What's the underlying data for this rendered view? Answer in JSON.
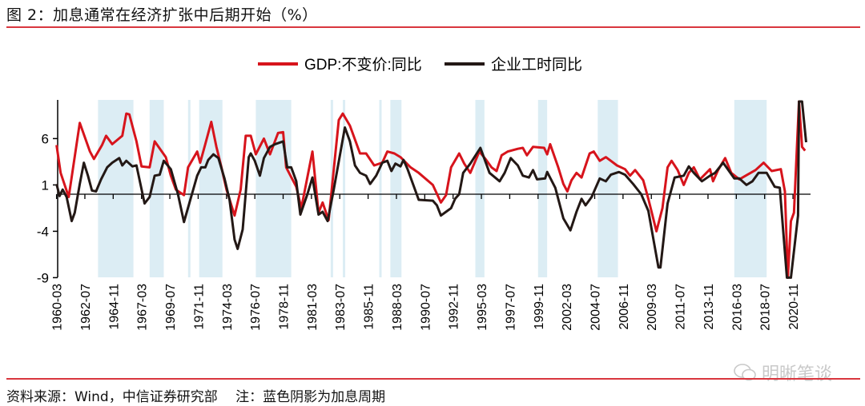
{
  "title": "图 2：加息通常在经济扩张中后期开始（%）",
  "source": "资料来源：Wind，中信证券研究部　 注：蓝色阴影为加息周期",
  "watermark": "明晰笔谈",
  "colors": {
    "gdp": "#d7141c",
    "hours": "#231815",
    "shade": "#dcedf4",
    "rule": "#d9363e"
  },
  "chart_data": {
    "type": "line",
    "title": "",
    "xlabel": "",
    "ylabel": "",
    "ylim": [
      -9,
      10
    ],
    "yticks": [
      -9,
      -4,
      1,
      6
    ],
    "xticks": [
      "1960-03",
      "1962-07",
      "1964-11",
      "1967-03",
      "1969-07",
      "1971-11",
      "1974-03",
      "1976-07",
      "1978-11",
      "1981-03",
      "1983-07",
      "1985-11",
      "1988-03",
      "1990-07",
      "1992-11",
      "1995-03",
      "1997-07",
      "1999-11",
      "2002-03",
      "2004-07",
      "2006-11",
      "2009-03",
      "2011-07",
      "2013-11",
      "2016-03",
      "2018-07",
      "2020-11"
    ],
    "legend_position": "top-center",
    "grid": false,
    "shaded_periods": [
      [
        "1963-08",
        "1966-07"
      ],
      [
        "1967-11",
        "1969-01"
      ],
      [
        "1971-01",
        "1971-03"
      ],
      [
        "1971-12",
        "1973-11"
      ],
      [
        "1976-08",
        "1979-07"
      ],
      [
        "1982-10",
        "1982-12"
      ],
      [
        "1983-10",
        "1983-12"
      ],
      [
        "1986-10",
        "1986-12"
      ],
      [
        "1987-09",
        "1988-08"
      ],
      [
        "1994-09",
        "1995-06"
      ],
      [
        "1999-11",
        "2000-08"
      ],
      [
        "2004-10",
        "2006-06"
      ],
      [
        "2016-01",
        "2018-09"
      ]
    ],
    "series": [
      {
        "name": "GDP:不变价:同比",
        "color": "#d7141c",
        "points": [
          [
            "1960-03",
            5.3
          ],
          [
            "1960-07",
            2.3
          ],
          [
            "1961-03",
            -0.3
          ],
          [
            "1962-02",
            7.7
          ],
          [
            "1962-12",
            4.6
          ],
          [
            "1963-04",
            3.8
          ],
          [
            "1963-12",
            5.3
          ],
          [
            "1964-04",
            6.3
          ],
          [
            "1964-10",
            5.4
          ],
          [
            "1965-08",
            6.3
          ],
          [
            "1965-12",
            8.7
          ],
          [
            "1966-03",
            8.6
          ],
          [
            "1966-10",
            5.7
          ],
          [
            "1967-03",
            3.0
          ],
          [
            "1967-11",
            2.9
          ],
          [
            "1968-04",
            5.7
          ],
          [
            "1969-03",
            4.0
          ],
          [
            "1969-08",
            2.0
          ],
          [
            "1970-01",
            0.5
          ],
          [
            "1970-09",
            -0.1
          ],
          [
            "1971-01",
            2.9
          ],
          [
            "1971-10",
            4.6
          ],
          [
            "1972-01",
            3.4
          ],
          [
            "1972-06",
            5.4
          ],
          [
            "1972-12",
            7.8
          ],
          [
            "1973-05",
            5.1
          ],
          [
            "1973-10",
            2.9
          ],
          [
            "1974-03",
            0.5
          ],
          [
            "1974-11",
            -2.3
          ],
          [
            "1975-05",
            0.5
          ],
          [
            "1975-10",
            6.3
          ],
          [
            "1976-03",
            6.3
          ],
          [
            "1976-08",
            4.3
          ],
          [
            "1977-04",
            6.0
          ],
          [
            "1977-10",
            4.3
          ],
          [
            "1978-06",
            6.6
          ],
          [
            "1978-11",
            6.7
          ],
          [
            "1979-02",
            2.9
          ],
          [
            "1979-12",
            0.8
          ],
          [
            "1980-05",
            -1.5
          ],
          [
            "1981-04",
            4.6
          ],
          [
            "1981-10",
            -2.0
          ],
          [
            "1982-02",
            -0.9
          ],
          [
            "1982-08",
            -2.8
          ],
          [
            "1983-06",
            8.0
          ],
          [
            "1983-10",
            8.7
          ],
          [
            "1984-05",
            7.4
          ],
          [
            "1985-03",
            4.4
          ],
          [
            "1985-09",
            4.4
          ],
          [
            "1986-05",
            3.1
          ],
          [
            "1987-01",
            3.4
          ],
          [
            "1987-06",
            4.6
          ],
          [
            "1988-01",
            4.4
          ],
          [
            "1988-07",
            4.0
          ],
          [
            "1989-05",
            2.9
          ],
          [
            "1990-01",
            2.3
          ],
          [
            "1991-03",
            1.0
          ],
          [
            "1991-11",
            -0.9
          ],
          [
            "1992-04",
            -0.1
          ],
          [
            "1992-09",
            2.9
          ],
          [
            "1993-05",
            4.4
          ],
          [
            "1993-10",
            3.3
          ],
          [
            "1994-04",
            2.3
          ],
          [
            "1995-01",
            4.6
          ],
          [
            "1995-07",
            3.8
          ],
          [
            "1996-01",
            2.9
          ],
          [
            "1996-06",
            2.5
          ],
          [
            "1996-11",
            4.2
          ],
          [
            "1997-05",
            4.6
          ],
          [
            "1998-03",
            4.9
          ],
          [
            "1998-08",
            5.0
          ],
          [
            "1998-12",
            4.2
          ],
          [
            "1999-06",
            5.1
          ],
          [
            "2000-05",
            5.0
          ],
          [
            "2000-08",
            4.3
          ],
          [
            "2000-11",
            5.4
          ],
          [
            "2001-07",
            2.9
          ],
          [
            "2001-12",
            1.1
          ],
          [
            "2002-04",
            0.3
          ],
          [
            "2002-08",
            1.5
          ],
          [
            "2003-01",
            2.3
          ],
          [
            "2003-06",
            1.8
          ],
          [
            "2004-02",
            4.4
          ],
          [
            "2004-06",
            4.6
          ],
          [
            "2004-12",
            3.6
          ],
          [
            "2005-06",
            4.0
          ],
          [
            "2006-05",
            3.1
          ],
          [
            "2007-01",
            2.7
          ],
          [
            "2007-06",
            2.0
          ],
          [
            "2007-11",
            2.6
          ],
          [
            "2008-07",
            1.5
          ],
          [
            "2008-12",
            -0.5
          ],
          [
            "2009-08",
            -4.0
          ],
          [
            "2010-02",
            -1.5
          ],
          [
            "2010-07",
            2.9
          ],
          [
            "2010-11",
            3.6
          ],
          [
            "2011-05",
            2.6
          ],
          [
            "2011-11",
            1.0
          ],
          [
            "2012-04",
            2.3
          ],
          [
            "2012-09",
            2.9
          ],
          [
            "2013-03",
            1.6
          ],
          [
            "2014-01",
            2.7
          ],
          [
            "2014-04",
            1.4
          ],
          [
            "2014-09",
            2.6
          ],
          [
            "2015-04",
            3.9
          ],
          [
            "2015-10",
            2.3
          ],
          [
            "2016-06",
            1.6
          ],
          [
            "2017-02",
            2.1
          ],
          [
            "2017-10",
            2.6
          ],
          [
            "2018-06",
            3.4
          ],
          [
            "2019-02",
            2.5
          ],
          [
            "2019-11",
            2.7
          ],
          [
            "2020-03",
            0.3
          ],
          [
            "2020-06",
            -9.0
          ],
          [
            "2020-09",
            -2.9
          ],
          [
            "2020-12",
            -2.0
          ],
          [
            "2021-05",
            10.0
          ],
          [
            "2021-08",
            5.1
          ],
          [
            "2021-11",
            4.7
          ]
        ]
      },
      {
        "name": "企业工时同比",
        "color": "#231815",
        "points": [
          [
            "1960-03",
            1.1
          ],
          [
            "1960-06",
            -0.2
          ],
          [
            "1960-09",
            0.5
          ],
          [
            "1961-01",
            -0.3
          ],
          [
            "1961-06",
            -2.9
          ],
          [
            "1961-09",
            -2.0
          ],
          [
            "1962-02",
            1.1
          ],
          [
            "1962-06",
            3.4
          ],
          [
            "1962-10",
            2.0
          ],
          [
            "1963-02",
            0.4
          ],
          [
            "1963-06",
            0.3
          ],
          [
            "1963-11",
            1.6
          ],
          [
            "1964-05",
            2.9
          ],
          [
            "1964-10",
            3.4
          ],
          [
            "1965-05",
            3.9
          ],
          [
            "1965-08",
            3.1
          ],
          [
            "1965-12",
            3.6
          ],
          [
            "1966-06",
            3.0
          ],
          [
            "1966-10",
            3.1
          ],
          [
            "1967-06",
            -1.0
          ],
          [
            "1967-11",
            -0.3
          ],
          [
            "1968-04",
            2.0
          ],
          [
            "1968-09",
            2.1
          ],
          [
            "1969-01",
            3.6
          ],
          [
            "1969-08",
            2.7
          ],
          [
            "1970-03",
            0.0
          ],
          [
            "1970-09",
            -3.0
          ],
          [
            "1971-04",
            -0.3
          ],
          [
            "1971-10",
            2.0
          ],
          [
            "1972-02",
            2.9
          ],
          [
            "1972-06",
            2.9
          ],
          [
            "1972-09",
            3.7
          ],
          [
            "1973-02",
            4.3
          ],
          [
            "1973-07",
            3.9
          ],
          [
            "1974-01",
            1.7
          ],
          [
            "1974-06",
            -0.6
          ],
          [
            "1974-11",
            -4.9
          ],
          [
            "1975-02",
            -5.9
          ],
          [
            "1975-07",
            -3.8
          ],
          [
            "1976-01",
            4.0
          ],
          [
            "1976-03",
            4.4
          ],
          [
            "1976-07",
            3.6
          ],
          [
            "1976-12",
            2.0
          ],
          [
            "1977-04",
            3.9
          ],
          [
            "1977-10",
            5.1
          ],
          [
            "1978-03",
            5.4
          ],
          [
            "1978-11",
            5.7
          ],
          [
            "1979-03",
            2.9
          ],
          [
            "1979-07",
            2.9
          ],
          [
            "1979-12",
            1.4
          ],
          [
            "1980-04",
            -2.2
          ],
          [
            "1980-11",
            0.0
          ],
          [
            "1981-04",
            1.8
          ],
          [
            "1981-10",
            -2.2
          ],
          [
            "1982-02",
            -1.9
          ],
          [
            "1982-07",
            -2.9
          ],
          [
            "1983-01",
            0.5
          ],
          [
            "1983-12",
            7.2
          ],
          [
            "1984-05",
            5.7
          ],
          [
            "1984-10",
            3.1
          ],
          [
            "1985-03",
            2.3
          ],
          [
            "1985-09",
            2.0
          ],
          [
            "1986-01",
            1.1
          ],
          [
            "1986-07",
            2.0
          ],
          [
            "1987-01",
            3.4
          ],
          [
            "1987-06",
            3.6
          ],
          [
            "1987-10",
            2.5
          ],
          [
            "1988-02",
            3.3
          ],
          [
            "1988-07",
            3.0
          ],
          [
            "1988-10",
            3.7
          ],
          [
            "1989-02",
            2.7
          ],
          [
            "1990-01",
            -0.6
          ],
          [
            "1991-03",
            -0.7
          ],
          [
            "1991-07",
            -1.2
          ],
          [
            "1991-11",
            -2.3
          ],
          [
            "1992-04",
            -1.9
          ],
          [
            "1992-09",
            -1.5
          ],
          [
            "1993-01",
            -0.5
          ],
          [
            "1993-05",
            0.0
          ],
          [
            "1993-09",
            2.3
          ],
          [
            "1994-04",
            3.3
          ],
          [
            "1995-02",
            5.0
          ],
          [
            "1995-11",
            2.3
          ],
          [
            "1996-09",
            1.4
          ],
          [
            "1997-02",
            2.3
          ],
          [
            "1997-08",
            3.9
          ],
          [
            "1998-03",
            3.1
          ],
          [
            "1998-08",
            2.0
          ],
          [
            "1999-02",
            1.8
          ],
          [
            "1999-06",
            2.6
          ],
          [
            "1999-10",
            1.6
          ],
          [
            "2000-06",
            1.7
          ],
          [
            "2000-08",
            2.4
          ],
          [
            "2001-04",
            0.7
          ],
          [
            "2001-12",
            -2.6
          ],
          [
            "2002-07",
            -3.9
          ],
          [
            "2003-01",
            -1.9
          ],
          [
            "2003-06",
            -0.5
          ],
          [
            "2003-10",
            -1.2
          ],
          [
            "2004-04",
            -0.3
          ],
          [
            "2004-12",
            1.7
          ],
          [
            "2005-06",
            1.4
          ],
          [
            "2005-11",
            2.1
          ],
          [
            "2006-07",
            2.4
          ],
          [
            "2007-01",
            2.1
          ],
          [
            "2007-09",
            1.1
          ],
          [
            "2008-05",
            0.0
          ],
          [
            "2008-12",
            -1.8
          ],
          [
            "2009-10",
            -7.9
          ],
          [
            "2009-12",
            -7.9
          ],
          [
            "2010-07",
            -1.0
          ],
          [
            "2011-02",
            1.8
          ],
          [
            "2011-11",
            2.0
          ],
          [
            "2012-04",
            3.0
          ],
          [
            "2012-09",
            2.3
          ],
          [
            "2013-05",
            1.4
          ],
          [
            "2014-01",
            2.0
          ],
          [
            "2014-06",
            2.3
          ],
          [
            "2015-02",
            3.4
          ],
          [
            "2016-01",
            1.7
          ],
          [
            "2016-06",
            1.7
          ],
          [
            "2017-01",
            1.0
          ],
          [
            "2017-07",
            1.4
          ],
          [
            "2018-01",
            2.3
          ],
          [
            "2018-09",
            2.3
          ],
          [
            "2019-05",
            0.8
          ],
          [
            "2019-10",
            0.7
          ],
          [
            "2020-05",
            -9.0
          ],
          [
            "2020-09",
            -9.0
          ],
          [
            "2021-04",
            -2.3
          ],
          [
            "2021-05",
            10.0
          ],
          [
            "2021-08",
            10.0
          ],
          [
            "2021-12",
            5.6
          ]
        ]
      }
    ]
  }
}
